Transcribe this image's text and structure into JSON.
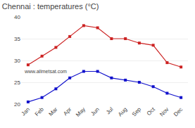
{
  "chart_data": {
    "type": "line",
    "title": "Chennai : temperatures (°C)",
    "categories": [
      "Jan",
      "Feb",
      "Mar",
      "Apr",
      "May",
      "Jun",
      "Jul",
      "Aug",
      "Sep",
      "Oct",
      "Nov",
      "Dec"
    ],
    "series": [
      {
        "color": "#cc2222",
        "marker": "square",
        "values": [
          29,
          31,
          33,
          35.5,
          38,
          37.5,
          35,
          35,
          34,
          33.5,
          29.5,
          28.5
        ]
      },
      {
        "color": "#1111cc",
        "marker": "square",
        "values": [
          20.5,
          21.5,
          23.5,
          26,
          27.5,
          27.5,
          26,
          25.5,
          25,
          24,
          22.5,
          21.5
        ]
      }
    ],
    "ylim": [
      20,
      40
    ],
    "yticks": [
      20,
      25,
      30,
      35,
      40
    ],
    "grid": true,
    "annotations": [
      "www.allmetsat.com"
    ]
  }
}
